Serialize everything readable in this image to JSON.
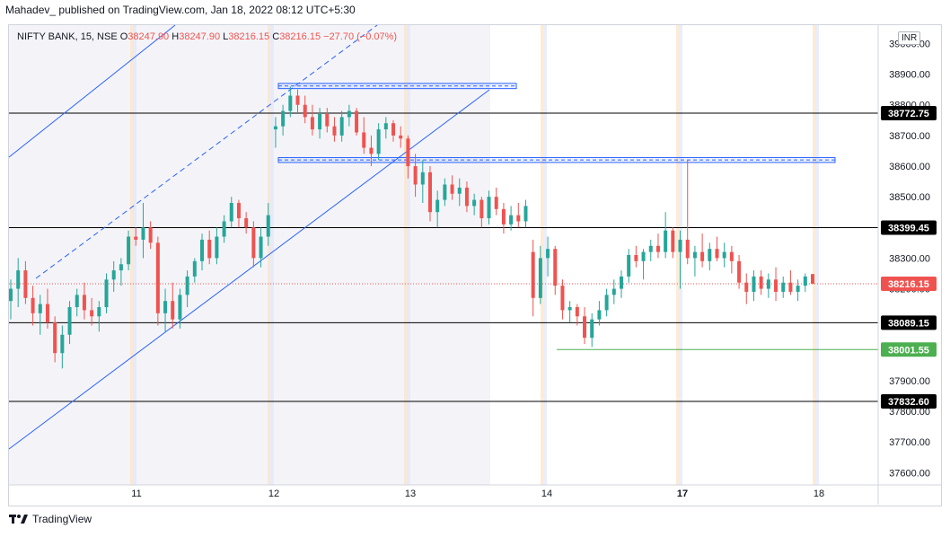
{
  "header": {
    "publisher": "Mahadev_",
    "published_text": "published on TradingView.com, Jan 18, 2022 08:12 UTC+5:30"
  },
  "legend": {
    "symbol": "NIFTY BANK, 15, NSE",
    "o_label": "O",
    "o": "38247.90",
    "h_label": "H",
    "h": "38247.90",
    "l_label": "L",
    "l": "38216.15",
    "c_label": "C",
    "c": "38216.15",
    "change": "−27.70 (−0.07%)"
  },
  "currency": "INR",
  "footer": {
    "brand": "TradingView"
  },
  "colors": {
    "up": "#26a69a",
    "down": "#ef5350",
    "line": "#2962ff",
    "green_level": "#4caf50",
    "black_level": "#000000"
  },
  "chart_data": {
    "type": "candlestick",
    "y_axis": {
      "ticks": [
        "39000.00",
        "38900.00",
        "38800.00",
        "38700.00",
        "38600.00",
        "38500.00",
        "38400.00",
        "38300.00",
        "38200.00",
        "38100.00",
        "38000.00",
        "37900.00",
        "37800.00",
        "37700.00",
        "37600.00"
      ],
      "tick_values": [
        39000,
        38900,
        38800,
        38700,
        38600,
        38500,
        38400,
        38300,
        38200,
        38100,
        38000,
        37900,
        37800,
        37700,
        37600
      ],
      "range": [
        37560,
        39060
      ]
    },
    "x_axis": {
      "labels": [
        "11",
        "12",
        "13",
        "14",
        "17",
        "18"
      ],
      "bold_labels": [
        "17"
      ]
    },
    "price_labels": [
      {
        "text": "38772.75",
        "value": 38772.75,
        "style": "black"
      },
      {
        "text": "38399.45",
        "value": 38399.45,
        "style": "black"
      },
      {
        "text": "38216.15",
        "value": 38216.15,
        "style": "red"
      },
      {
        "text": "38089.15",
        "value": 38089.15,
        "style": "black"
      },
      {
        "text": "38001.55",
        "value": 38001.55,
        "style": "green"
      },
      {
        "text": "37832.60",
        "value": 37832.6,
        "style": "black"
      }
    ],
    "horizontal_levels": [
      38772.75,
      38399.45,
      38089.15,
      37832.6
    ],
    "current_price": 38216.15,
    "green_level": 38001.55,
    "resistance_zone": {
      "from": 38853,
      "to": 38870
    },
    "support_zone": {
      "from": 38612,
      "to": 38628
    },
    "candles": [
      [
        38160,
        38230,
        38100,
        38200
      ],
      [
        38200,
        38300,
        38140,
        38260
      ],
      [
        38260,
        38290,
        38150,
        38170
      ],
      [
        38170,
        38210,
        38080,
        38120
      ],
      [
        38120,
        38180,
        38050,
        38150
      ],
      [
        38150,
        38200,
        38070,
        38090
      ],
      [
        38090,
        38110,
        37960,
        37990
      ],
      [
        37990,
        38080,
        37940,
        38050
      ],
      [
        38050,
        38160,
        38020,
        38140
      ],
      [
        38140,
        38200,
        38110,
        38180
      ],
      [
        38180,
        38220,
        38100,
        38130
      ],
      [
        38130,
        38170,
        38080,
        38110
      ],
      [
        38110,
        38160,
        38060,
        38140
      ],
      [
        38140,
        38250,
        38120,
        38230
      ],
      [
        38230,
        38290,
        38190,
        38260
      ],
      [
        38260,
        38300,
        38210,
        38280
      ],
      [
        38280,
        38390,
        38260,
        38370
      ],
      [
        38370,
        38400,
        38340,
        38360
      ],
      [
        38360,
        38480,
        38300,
        38400
      ],
      [
        38400,
        38420,
        38330,
        38350
      ],
      [
        38350,
        38370,
        38080,
        38120
      ],
      [
        38120,
        38200,
        38060,
        38160
      ],
      [
        38160,
        38220,
        38070,
        38100
      ],
      [
        38100,
        38200,
        38070,
        38180
      ],
      [
        38180,
        38260,
        38140,
        38240
      ],
      [
        38240,
        38300,
        38220,
        38290
      ],
      [
        38290,
        38380,
        38260,
        38360
      ],
      [
        38360,
        38390,
        38280,
        38300
      ],
      [
        38300,
        38400,
        38280,
        38370
      ],
      [
        38370,
        38440,
        38350,
        38420
      ],
      [
        38420,
        38500,
        38400,
        38480
      ],
      [
        38480,
        38490,
        38400,
        38430
      ],
      [
        38430,
        38450,
        38380,
        38400
      ],
      [
        38400,
        38420,
        38270,
        38300
      ],
      [
        38300,
        38400,
        38270,
        38370
      ],
      [
        38370,
        38480,
        38340,
        38440
      ],
      [
        38720,
        38760,
        38660,
        38730
      ],
      [
        38730,
        38800,
        38700,
        38780
      ],
      [
        38780,
        38860,
        38760,
        38830
      ],
      [
        38830,
        38850,
        38770,
        38800
      ],
      [
        38800,
        38830,
        38740,
        38760
      ],
      [
        38760,
        38800,
        38700,
        38720
      ],
      [
        38720,
        38790,
        38690,
        38770
      ],
      [
        38770,
        38790,
        38710,
        38730
      ],
      [
        38730,
        38760,
        38680,
        38700
      ],
      [
        38700,
        38780,
        38680,
        38760
      ],
      [
        38760,
        38800,
        38730,
        38780
      ],
      [
        38780,
        38790,
        38700,
        38710
      ],
      [
        38710,
        38760,
        38640,
        38660
      ],
      [
        38660,
        38700,
        38600,
        38640
      ],
      [
        38640,
        38740,
        38620,
        38720
      ],
      [
        38720,
        38760,
        38690,
        38740
      ],
      [
        38740,
        38750,
        38680,
        38700
      ],
      [
        38700,
        38730,
        38660,
        38690
      ],
      [
        38690,
        38700,
        38560,
        38600
      ],
      [
        38600,
        38640,
        38500,
        38540
      ],
      [
        38540,
        38620,
        38480,
        38580
      ],
      [
        38580,
        38600,
        38420,
        38450
      ],
      [
        38450,
        38520,
        38400,
        38490
      ],
      [
        38490,
        38560,
        38470,
        38540
      ],
      [
        38540,
        38570,
        38490,
        38510
      ],
      [
        38510,
        38560,
        38470,
        38530
      ],
      [
        38530,
        38550,
        38450,
        38470
      ],
      [
        38470,
        38510,
        38440,
        38490
      ],
      [
        38490,
        38500,
        38400,
        38430
      ],
      [
        38430,
        38520,
        38410,
        38500
      ],
      [
        38500,
        38530,
        38440,
        38460
      ],
      [
        38460,
        38480,
        38380,
        38410
      ],
      [
        38410,
        38470,
        38390,
        38440
      ],
      [
        38440,
        38480,
        38400,
        38420
      ],
      [
        38420,
        38490,
        38400,
        38470
      ],
      [
        38320,
        38360,
        38110,
        38170
      ],
      [
        38170,
        38340,
        38150,
        38300
      ],
      [
        38300,
        38370,
        38240,
        38330
      ],
      [
        38330,
        38340,
        38180,
        38210
      ],
      [
        38210,
        38230,
        38100,
        38130
      ],
      [
        38130,
        38160,
        38090,
        38140
      ],
      [
        38140,
        38150,
        38080,
        38110
      ],
      [
        38110,
        38140,
        38020,
        38040
      ],
      [
        38040,
        38120,
        38010,
        38100
      ],
      [
        38100,
        38160,
        38080,
        38130
      ],
      [
        38130,
        38200,
        38110,
        38180
      ],
      [
        38180,
        38230,
        38150,
        38200
      ],
      [
        38200,
        38260,
        38170,
        38240
      ],
      [
        38240,
        38330,
        38220,
        38310
      ],
      [
        38310,
        38340,
        38270,
        38290
      ],
      [
        38290,
        38330,
        38230,
        38320
      ],
      [
        38320,
        38360,
        38290,
        38340
      ],
      [
        38340,
        38380,
        38300,
        38320
      ],
      [
        38320,
        38450,
        38300,
        38390
      ],
      [
        38390,
        38400,
        38300,
        38320
      ],
      [
        38320,
        38390,
        38200,
        38360
      ],
      [
        38360,
        38620,
        38280,
        38300
      ],
      [
        38300,
        38340,
        38240,
        38320
      ],
      [
        38320,
        38380,
        38270,
        38290
      ],
      [
        38290,
        38350,
        38260,
        38330
      ],
      [
        38330,
        38370,
        38290,
        38300
      ],
      [
        38300,
        38350,
        38270,
        38320
      ],
      [
        38320,
        38340,
        38250,
        38290
      ],
      [
        38290,
        38310,
        38200,
        38220
      ],
      [
        38220,
        38250,
        38150,
        38190
      ],
      [
        38190,
        38260,
        38160,
        38240
      ],
      [
        38240,
        38260,
        38180,
        38200
      ],
      [
        38200,
        38250,
        38170,
        38230
      ],
      [
        38230,
        38270,
        38160,
        38190
      ],
      [
        38190,
        38240,
        38170,
        38220
      ],
      [
        38220,
        38260,
        38180,
        38190
      ],
      [
        38190,
        38230,
        38160,
        38210
      ],
      [
        38210,
        38250,
        38190,
        38240
      ],
      [
        38247.9,
        38247.9,
        38216.15,
        38216.15
      ]
    ]
  }
}
